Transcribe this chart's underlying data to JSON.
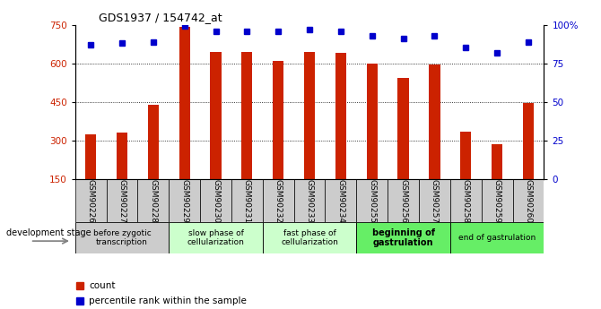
{
  "title": "GDS1937 / 154742_at",
  "samples": [
    "GSM90226",
    "GSM90227",
    "GSM90228",
    "GSM90229",
    "GSM90230",
    "GSM90231",
    "GSM90232",
    "GSM90233",
    "GSM90234",
    "GSM90255",
    "GSM90256",
    "GSM90257",
    "GSM90258",
    "GSM90259",
    "GSM90260"
  ],
  "counts": [
    325,
    330,
    440,
    740,
    645,
    645,
    610,
    645,
    640,
    600,
    545,
    595,
    335,
    285,
    445
  ],
  "percentile_rank": [
    87,
    88,
    89,
    99,
    96,
    96,
    96,
    97,
    96,
    93,
    91,
    93,
    85,
    82,
    89
  ],
  "ylim_left": [
    150,
    750
  ],
  "ylim_right": [
    0,
    100
  ],
  "yticks_left": [
    150,
    300,
    450,
    600,
    750
  ],
  "yticks_right": [
    0,
    25,
    50,
    75,
    100
  ],
  "bar_color": "#cc2200",
  "dot_color": "#0000cc",
  "stages": [
    {
      "label": "before zygotic\ntranscription",
      "start": 0,
      "end": 3,
      "color": "#cccccc",
      "bold": false
    },
    {
      "label": "slow phase of\ncellularization",
      "start": 3,
      "end": 6,
      "color": "#ccffcc",
      "bold": false
    },
    {
      "label": "fast phase of\ncellularization",
      "start": 6,
      "end": 9,
      "color": "#ccffcc",
      "bold": false
    },
    {
      "label": "beginning of\ngastrulation",
      "start": 9,
      "end": 12,
      "color": "#66ee66",
      "bold": true
    },
    {
      "label": "end of gastrulation",
      "start": 12,
      "end": 15,
      "color": "#66ee66",
      "bold": false
    }
  ],
  "dev_stage_label": "development stage",
  "legend_count_label": "count",
  "legend_pct_label": "percentile rank within the sample",
  "tick_bg_color": "#cccccc",
  "fig_width": 6.7,
  "fig_height": 3.45,
  "dpi": 100
}
